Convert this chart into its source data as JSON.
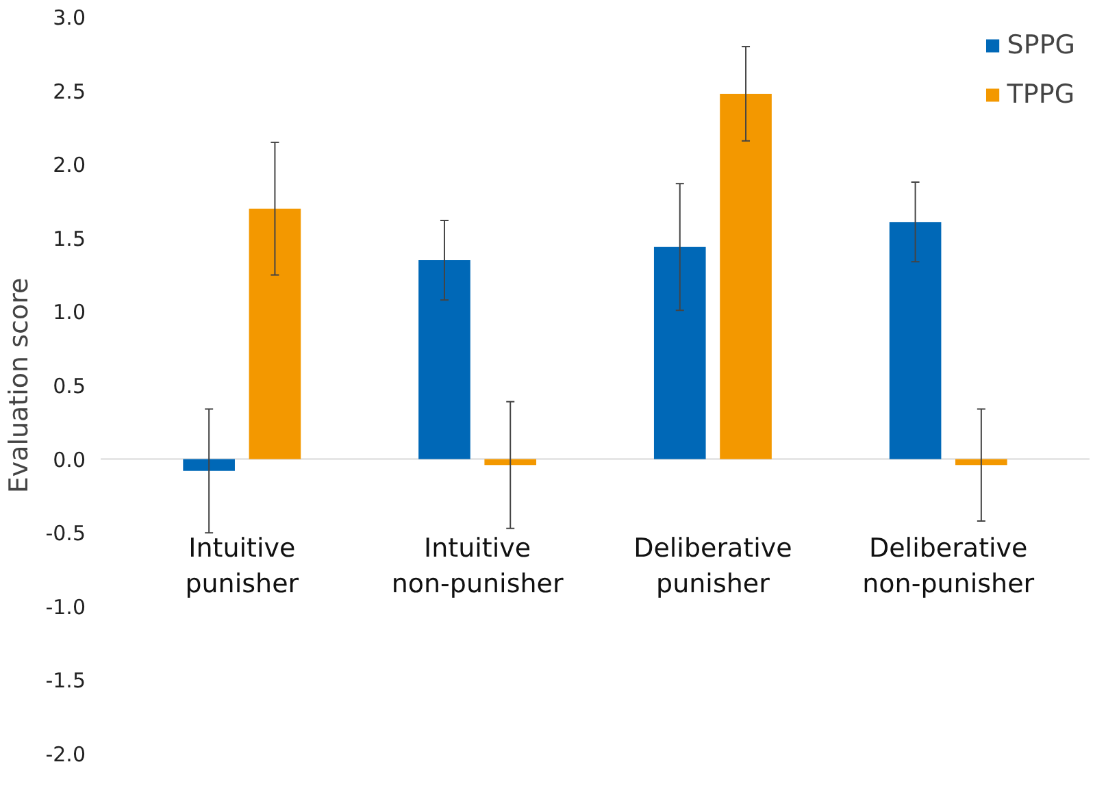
{
  "chart_data": {
    "type": "bar",
    "ylabel": "Evaluation score",
    "categories": [
      "Intuitive punisher",
      "Intuitive non-punisher",
      "Deliberative punisher",
      "Deliberative non-punisher"
    ],
    "series": [
      {
        "name": "SPPG",
        "color": "#0068b7",
        "values": [
          -0.08,
          1.35,
          1.44,
          1.61
        ],
        "errors": [
          0.42,
          0.27,
          0.43,
          0.27
        ]
      },
      {
        "name": "TPPG",
        "color": "#f39800",
        "values": [
          1.7,
          -0.04,
          2.48,
          -0.04
        ],
        "errors": [
          0.45,
          0.43,
          0.32,
          0.38
        ]
      }
    ],
    "ylim": [
      -2.0,
      3.0
    ],
    "yticks": [
      {
        "value": -2.0,
        "label": "-2.0"
      },
      {
        "value": -1.5,
        "label": "-1.5"
      },
      {
        "value": -1.0,
        "label": "-1.0"
      },
      {
        "value": -0.5,
        "label": "-0.5"
      },
      {
        "value": 0.0,
        "label": "0.0"
      },
      {
        "value": 0.5,
        "label": "0.5"
      },
      {
        "value": 1.0,
        "label": "1.0"
      },
      {
        "value": 1.5,
        "label": "1.5"
      },
      {
        "value": 2.0,
        "label": "2.0"
      },
      {
        "value": 2.5,
        "label": "2.5"
      },
      {
        "value": 3.0,
        "label": "3.0"
      }
    ],
    "ref_lines": [
      {
        "axis": "y",
        "value": 0.0,
        "color": "#e6e6e6"
      }
    ],
    "legend": "top right"
  }
}
